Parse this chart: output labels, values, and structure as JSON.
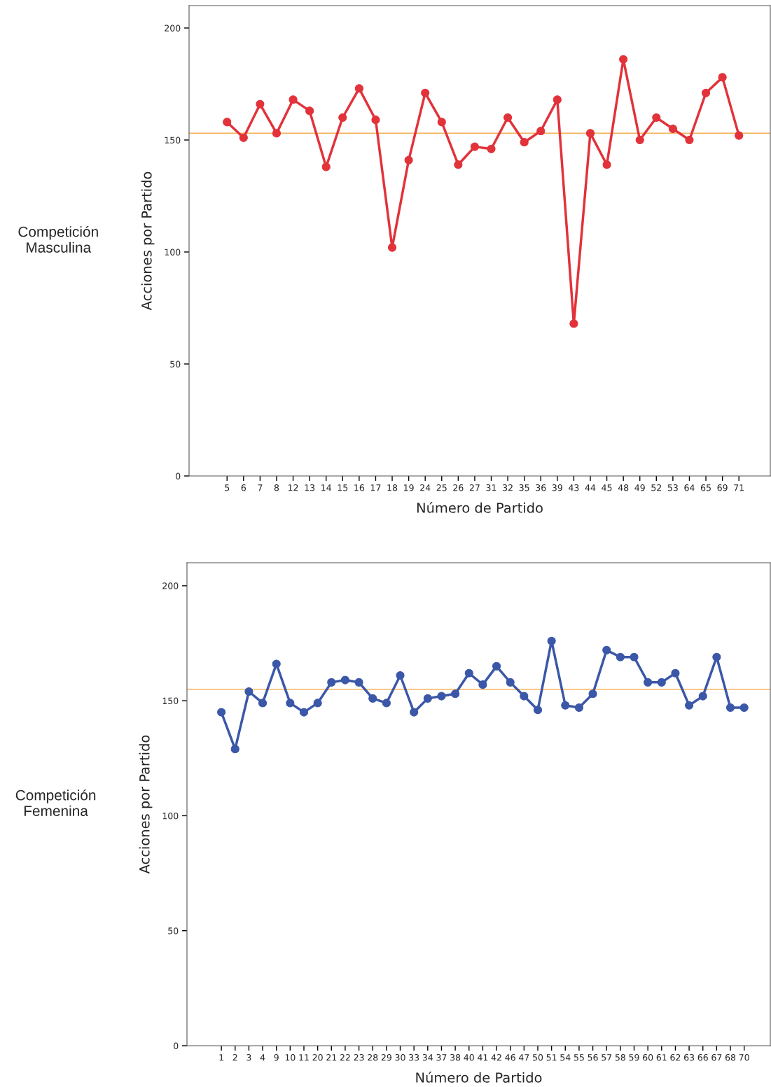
{
  "chart_data": [
    {
      "type": "line",
      "xlabel": "Número de Partido",
      "ylabel": "Acciones por Partido",
      "categories": [
        "5",
        "6",
        "7",
        "8",
        "12",
        "13",
        "14",
        "15",
        "16",
        "17",
        "18",
        "19",
        "24",
        "25",
        "26",
        "27",
        "31",
        "32",
        "35",
        "36",
        "39",
        "43",
        "44",
        "45",
        "48",
        "49",
        "52",
        "53",
        "64",
        "65",
        "69",
        "71"
      ],
      "series": [
        {
          "color": "#e2323a",
          "values": [
            158,
            151,
            166,
            153,
            168,
            163,
            138,
            160,
            173,
            159,
            102,
            141,
            171,
            158,
            139,
            147,
            146,
            160,
            149,
            154,
            168,
            68,
            153,
            139,
            186,
            150,
            160,
            155,
            150,
            171,
            178,
            152
          ]
        }
      ],
      "ylim": [
        0,
        210
      ],
      "yticks": [
        0,
        50,
        100,
        150,
        200
      ],
      "marker": "circle",
      "line_style": "solid",
      "grid": false,
      "legend": false,
      "ref_lines": [
        {
          "axis": "y",
          "value": 153,
          "color": "#f5b25a"
        }
      ],
      "annotations": [
        "Competición\nMasculina"
      ]
    },
    {
      "type": "line",
      "xlabel": "Número de Partido",
      "ylabel": "Acciones por Partido",
      "categories": [
        "1",
        "2",
        "3",
        "4",
        "9",
        "10",
        "11",
        "20",
        "21",
        "22",
        "23",
        "28",
        "29",
        "30",
        "33",
        "34",
        "37",
        "38",
        "40",
        "41",
        "42",
        "46",
        "47",
        "50",
        "51",
        "54",
        "55",
        "56",
        "57",
        "58",
        "59",
        "60",
        "61",
        "62",
        "63",
        "66",
        "67",
        "68",
        "70"
      ],
      "series": [
        {
          "color": "#3b57a8",
          "values": [
            145,
            129,
            154,
            149,
            166,
            149,
            145,
            149,
            158,
            159,
            158,
            151,
            149,
            161,
            145,
            151,
            152,
            153,
            162,
            157,
            165,
            158,
            152,
            146,
            176,
            148,
            147,
            153,
            172,
            169,
            169,
            158,
            158,
            162,
            148,
            152,
            169,
            147,
            147
          ]
        }
      ],
      "ylim": [
        0,
        210
      ],
      "yticks": [
        0,
        50,
        100,
        150,
        200
      ],
      "marker": "circle",
      "line_style": "solid",
      "grid": false,
      "legend": false,
      "ref_lines": [
        {
          "axis": "y",
          "value": 155,
          "color": "#f5b25a"
        }
      ],
      "annotations": [
        "Competición\nFemenina"
      ]
    }
  ]
}
